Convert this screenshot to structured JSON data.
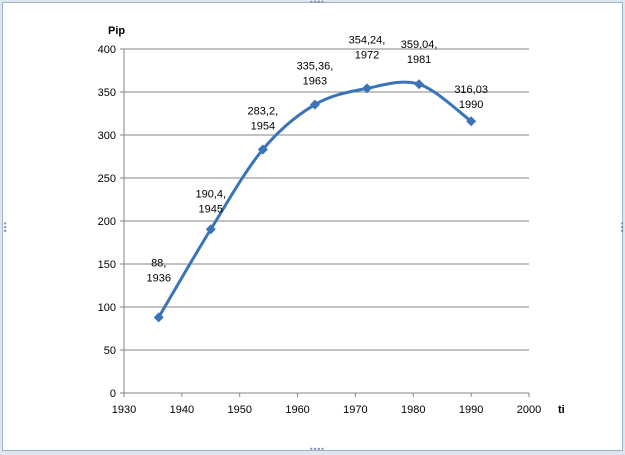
{
  "chart_data": {
    "type": "line",
    "title": "",
    "ylabel": "Pip",
    "xlabel": "ti",
    "xlim": [
      1930,
      2000
    ],
    "ylim": [
      0,
      400
    ],
    "x_ticks": [
      1930,
      1940,
      1950,
      1960,
      1970,
      1980,
      1990,
      2000
    ],
    "y_ticks": [
      0,
      50,
      100,
      150,
      200,
      250,
      300,
      350,
      400
    ],
    "grid": "horizontal",
    "smooth": true,
    "series_color": "#3a73b8",
    "series": [
      {
        "x": [
          1936,
          1945,
          1954,
          1963,
          1972,
          1981,
          1990
        ],
        "y": [
          88,
          190.4,
          283.2,
          335.36,
          354.24,
          359.04,
          316.03
        ],
        "labels": [
          [
            "88,",
            "1936"
          ],
          [
            "190,4,",
            "1945"
          ],
          [
            "283,2,",
            "1954"
          ],
          [
            "335,36,",
            "1963"
          ],
          [
            "354,24,",
            "1972"
          ],
          [
            "359,04,",
            "1981"
          ],
          [
            "316,03",
            "1990"
          ]
        ]
      }
    ]
  }
}
